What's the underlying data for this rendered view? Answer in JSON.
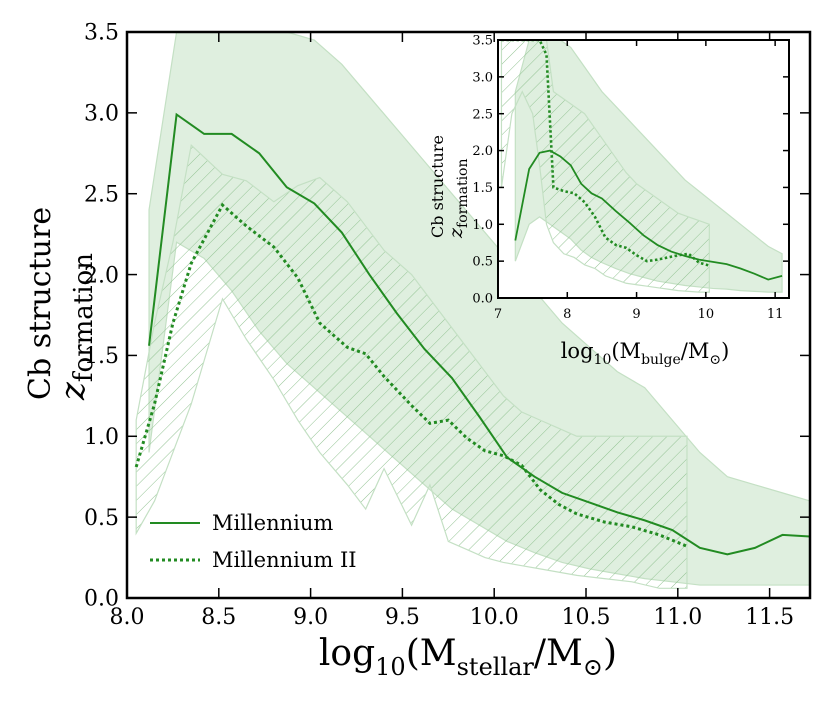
{
  "chart_data": [
    {
      "type": "line",
      "xlabel_main": "log",
      "xlabel_sub": "10",
      "xlabel_rest": "(M",
      "xlabel_sub2": "stellar",
      "xlabel_rest2": "/M",
      "xlabel_sun": "⊙",
      "xlabel_end": ")",
      "ylabel_line1": "Cb structure",
      "ylabel_z": "z",
      "ylabel_sub": "formation",
      "xlim": [
        8.0,
        11.72
      ],
      "ylim": [
        0.0,
        3.5
      ],
      "xticks": [
        8.0,
        8.5,
        9.0,
        9.5,
        10.0,
        10.5,
        11.0,
        11.5
      ],
      "xtick_labels": [
        "8.0",
        "8.5",
        "9.0",
        "9.5",
        "10.0",
        "10.5",
        "11.0",
        "11.5"
      ],
      "yticks": [
        0.0,
        0.5,
        1.0,
        1.5,
        2.0,
        2.5,
        3.0,
        3.5
      ],
      "ytick_labels": [
        "0.0",
        "0.5",
        "1.0",
        "1.5",
        "2.0",
        "2.5",
        "3.0",
        "3.5"
      ],
      "legend_position": "lower-left",
      "series": [
        {
          "name": "Millennium",
          "style": "solid",
          "x": [
            8.12,
            8.27,
            8.42,
            8.57,
            8.72,
            8.87,
            9.02,
            9.17,
            9.32,
            9.47,
            9.62,
            9.77,
            9.92,
            10.07,
            10.22,
            10.37,
            10.52,
            10.67,
            10.82,
            10.97,
            11.12,
            11.27,
            11.42,
            11.57,
            11.72
          ],
          "values": [
            1.56,
            2.99,
            2.87,
            2.87,
            2.75,
            2.54,
            2.44,
            2.26,
            2.0,
            1.76,
            1.54,
            1.36,
            1.12,
            0.87,
            0.75,
            0.65,
            0.59,
            0.53,
            0.48,
            0.42,
            0.31,
            0.27,
            0.31,
            0.39,
            0.38
          ],
          "band_upper": [
            2.4,
            3.5,
            3.5,
            3.5,
            3.5,
            3.5,
            3.45,
            3.3,
            3.1,
            2.9,
            2.7,
            2.5,
            2.3,
            2.1,
            1.9,
            1.7,
            1.55,
            1.4,
            1.3,
            1.1,
            0.9,
            0.75,
            0.7,
            0.65,
            0.6
          ],
          "band_lower": [
            0.9,
            2.2,
            2.1,
            1.9,
            1.65,
            1.45,
            1.3,
            1.15,
            1.0,
            0.85,
            0.7,
            0.55,
            0.45,
            0.35,
            0.28,
            0.22,
            0.18,
            0.15,
            0.12,
            0.1,
            0.08,
            0.08,
            0.08,
            0.08,
            0.08
          ]
        },
        {
          "name": "Millennium II",
          "style": "dotted",
          "x": [
            8.05,
            8.15,
            8.25,
            8.35,
            8.52,
            8.65,
            8.8,
            8.93,
            9.05,
            9.2,
            9.3,
            9.4,
            9.55,
            9.65,
            9.75,
            9.85,
            9.95,
            10.05,
            10.15,
            10.25,
            10.35,
            10.45,
            10.6,
            10.75,
            10.9,
            11.05
          ],
          "values": [
            0.81,
            1.2,
            1.7,
            2.07,
            2.43,
            2.3,
            2.17,
            1.98,
            1.7,
            1.55,
            1.51,
            1.37,
            1.19,
            1.08,
            1.1,
            0.99,
            0.91,
            0.88,
            0.82,
            0.67,
            0.58,
            0.52,
            0.47,
            0.44,
            0.39,
            0.32
          ],
          "band_upper": [
            1.1,
            1.7,
            2.2,
            2.8,
            2.62,
            2.58,
            2.45,
            2.55,
            2.6,
            2.45,
            2.3,
            2.15,
            2.0,
            1.85,
            1.7,
            1.55,
            1.4,
            1.25,
            1.15,
            1.1,
            1.05,
            1.0,
            1.0,
            1.0,
            1.0,
            1.0
          ],
          "band_lower": [
            0.4,
            0.6,
            0.9,
            1.2,
            1.85,
            1.6,
            1.35,
            1.1,
            0.9,
            0.7,
            0.55,
            0.8,
            0.45,
            0.7,
            0.35,
            0.3,
            0.25,
            0.22,
            0.2,
            0.18,
            0.16,
            0.14,
            0.12,
            0.1,
            0.06,
            0.06
          ]
        }
      ]
    },
    {
      "type": "line",
      "role": "inset",
      "xlabel_main": "log",
      "xlabel_sub": "10",
      "xlabel_rest": "(M",
      "xlabel_sub2": "bulge",
      "xlabel_rest2": "/M",
      "xlabel_sun": "⊙",
      "xlabel_end": ")",
      "ylabel_line1": "Cb structure",
      "ylabel_z": "z",
      "ylabel_sub": "formation",
      "xlim": [
        7.0,
        11.2
      ],
      "ylim": [
        0.0,
        3.5
      ],
      "xticks": [
        7,
        8,
        9,
        10,
        11
      ],
      "xtick_labels": [
        "7",
        "8",
        "9",
        "10",
        "11"
      ],
      "yticks": [
        0.0,
        0.5,
        1.0,
        1.5,
        2.0,
        2.5,
        3.0,
        3.5
      ],
      "ytick_labels": [
        "0.0",
        "0.5",
        "1.0",
        "1.5",
        "2.0",
        "2.5",
        "3.0",
        "3.5"
      ],
      "series": [
        {
          "name": "Millennium",
          "style": "solid",
          "x": [
            7.25,
            7.45,
            7.6,
            7.75,
            7.9,
            8.05,
            8.2,
            8.35,
            8.5,
            8.7,
            8.9,
            9.1,
            9.3,
            9.5,
            9.7,
            9.9,
            10.1,
            10.3,
            10.5,
            10.7,
            10.9,
            11.1
          ],
          "values": [
            0.78,
            1.75,
            1.97,
            2.0,
            1.92,
            1.8,
            1.55,
            1.42,
            1.35,
            1.18,
            1.02,
            0.85,
            0.72,
            0.63,
            0.57,
            0.52,
            0.49,
            0.46,
            0.4,
            0.33,
            0.25,
            0.3
          ],
          "band_upper": [
            2.8,
            3.5,
            3.5,
            3.5,
            3.5,
            3.4,
            3.2,
            3.0,
            2.8,
            2.6,
            2.4,
            2.2,
            2.0,
            1.8,
            1.6,
            1.45,
            1.3,
            1.15,
            1.0,
            0.85,
            0.7,
            0.6
          ],
          "band_lower": [
            0.5,
            1.0,
            1.1,
            1.0,
            0.9,
            0.8,
            0.65,
            0.55,
            0.48,
            0.4,
            0.33,
            0.28,
            0.23,
            0.2,
            0.17,
            0.15,
            0.13,
            0.12,
            0.1,
            0.09,
            0.08,
            0.08
          ]
        },
        {
          "name": "Millennium II",
          "style": "dotted",
          "x": [
            7.05,
            7.2,
            7.35,
            7.5,
            7.6,
            7.7,
            7.8,
            7.95,
            8.1,
            8.25,
            8.4,
            8.55,
            8.7,
            8.85,
            9.0,
            9.15,
            9.3,
            9.45,
            9.6,
            9.75,
            9.9,
            10.05
          ],
          "values": [
            3.5,
            3.5,
            3.5,
            3.5,
            3.5,
            3.3,
            1.5,
            1.45,
            1.42,
            1.3,
            1.1,
            0.82,
            0.72,
            0.68,
            0.58,
            0.5,
            0.52,
            0.55,
            0.58,
            0.6,
            0.48,
            0.44
          ],
          "band_upper": [
            3.5,
            3.5,
            3.5,
            3.5,
            3.5,
            3.5,
            2.8,
            2.7,
            2.6,
            2.5,
            2.3,
            2.1,
            1.9,
            1.7,
            1.55,
            1.45,
            1.35,
            1.25,
            1.15,
            1.1,
            1.05,
            1.0
          ],
          "band_lower": [
            1.5,
            2.5,
            2.8,
            2.5,
            1.8,
            1.0,
            0.75,
            0.6,
            0.55,
            0.45,
            0.4,
            0.3,
            0.25,
            0.2,
            0.18,
            0.16,
            0.14,
            0.12,
            0.1,
            0.09,
            0.08,
            0.08
          ]
        }
      ]
    }
  ],
  "colors": {
    "line": "#228b22",
    "band": "#d9ecd9",
    "band_edge": "#c4e0c4",
    "hatch": "#93c393",
    "axis": "#000000"
  }
}
